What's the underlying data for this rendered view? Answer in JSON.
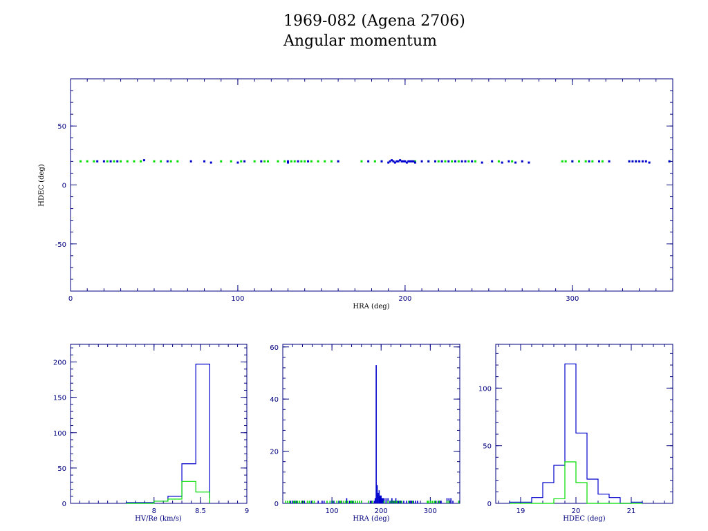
{
  "title": {
    "line1": "1969-082 (Agena 2706)",
    "line2": "Angular momentum"
  },
  "colors": {
    "axis": "#000080",
    "series_blue": "#0000cc",
    "series_green": "#00dd00",
    "text": "#000000"
  },
  "chart_data": [
    {
      "id": "scatter",
      "type": "scatter",
      "xlabel": "HRA (deg)",
      "ylabel": "HDEC (deg)",
      "xlim": [
        0,
        360
      ],
      "ylim": [
        -90,
        90
      ],
      "x_ticks": [
        0,
        100,
        200,
        300
      ],
      "y_ticks": [
        -50,
        0,
        50
      ],
      "series": [
        {
          "color": "blue",
          "x": [
            16,
            20,
            24,
            28,
            44,
            58,
            72,
            80,
            84,
            100,
            104,
            114,
            130,
            130,
            136,
            142,
            160,
            178,
            186,
            190,
            191,
            192,
            193,
            194,
            195,
            196,
            197,
            198,
            199,
            200,
            201,
            202,
            203,
            204,
            205,
            206,
            210,
            214,
            218,
            222,
            226,
            230,
            234,
            236,
            240,
            246,
            252,
            258,
            262,
            266,
            270,
            274,
            300,
            310,
            316,
            322,
            334,
            336,
            338,
            340,
            342,
            344,
            346,
            358
          ],
          "y": [
            20,
            20,
            20,
            20,
            21,
            20,
            20,
            20,
            19,
            19,
            20,
            20,
            20,
            19,
            20,
            20,
            20,
            20,
            20,
            19,
            20,
            21,
            20,
            19,
            20,
            20,
            21,
            20,
            20,
            20,
            19,
            20,
            20,
            20,
            20,
            19,
            20,
            20,
            20,
            20,
            20,
            20,
            20,
            20,
            20,
            19,
            20,
            19,
            20,
            19,
            20,
            19,
            20,
            20,
            20,
            20,
            20,
            20,
            20,
            20,
            20,
            20,
            19,
            20
          ]
        },
        {
          "color": "green",
          "x": [
            6,
            10,
            14,
            22,
            26,
            30,
            34,
            38,
            42,
            50,
            54,
            60,
            64,
            90,
            96,
            102,
            110,
            116,
            118,
            124,
            128,
            132,
            134,
            138,
            140,
            144,
            148,
            152,
            156,
            160,
            174,
            182,
            186,
            206,
            214,
            220,
            224,
            228,
            232,
            238,
            242,
            256,
            264,
            294,
            296,
            300,
            304,
            308,
            312,
            318,
            334,
            338,
            358
          ],
          "y": [
            20,
            20,
            20,
            20,
            20,
            20,
            20,
            20,
            20,
            20,
            20,
            20,
            20,
            20,
            20,
            20,
            20,
            20,
            20,
            20,
            20,
            20,
            20,
            20,
            20,
            20,
            20,
            20,
            20,
            20,
            20,
            20,
            20,
            20,
            20,
            20,
            20,
            20,
            20,
            20,
            20,
            20,
            20,
            20,
            20,
            20,
            20,
            20,
            20,
            20,
            20,
            20,
            20
          ]
        }
      ]
    },
    {
      "id": "hist-hv",
      "type": "bar",
      "xlabel": "HV/Re (km/s)",
      "ylabel": "",
      "xlim": [
        7.1,
        9.0
      ],
      "ylim": [
        0,
        225
      ],
      "x_ticks": [
        8,
        8.5,
        9
      ],
      "y_ticks": [
        0,
        50,
        100,
        150,
        200
      ],
      "bin_edges": [
        7.7,
        7.85,
        8.0,
        8.15,
        8.3,
        8.45,
        8.6
      ],
      "series": [
        {
          "color": "blue",
          "values": [
            1,
            1,
            3,
            10,
            56,
            197,
            8
          ]
        },
        {
          "color": "green",
          "values": [
            0,
            0,
            3,
            6,
            31,
            16,
            0
          ]
        }
      ]
    },
    {
      "id": "hist-hra",
      "type": "bar",
      "xlabel": "HRA (deg)",
      "ylabel": "",
      "xlim": [
        0,
        360
      ],
      "ylim": [
        0,
        61
      ],
      "x_ticks": [
        100,
        200,
        300
      ],
      "y_ticks": [
        0,
        20,
        40,
        60
      ],
      "series": [
        {
          "color": "blue",
          "x": [
            16,
            20,
            24,
            28,
            44,
            58,
            72,
            80,
            84,
            100,
            104,
            114,
            130,
            136,
            142,
            160,
            178,
            186,
            188,
            190,
            192,
            194,
            196,
            198,
            200,
            202,
            204,
            206,
            210,
            214,
            218,
            222,
            226,
            230,
            234,
            236,
            240,
            246,
            252,
            258,
            262,
            266,
            270,
            274,
            300,
            310,
            316,
            322,
            334,
            338,
            342,
            346,
            358
          ],
          "values": [
            1,
            1,
            1,
            1,
            1,
            1,
            1,
            1,
            1,
            1,
            1,
            1,
            2,
            1,
            1,
            1,
            1,
            1,
            2,
            53,
            7,
            4,
            5,
            3,
            3,
            2,
            2,
            2,
            2,
            2,
            1,
            2,
            1,
            2,
            1,
            1,
            1,
            1,
            1,
            1,
            1,
            1,
            1,
            1,
            1,
            1,
            1,
            1,
            2,
            2,
            2,
            1,
            1
          ]
        },
        {
          "color": "green",
          "x": [
            6,
            10,
            14,
            22,
            26,
            30,
            34,
            38,
            42,
            50,
            54,
            60,
            64,
            90,
            96,
            102,
            110,
            116,
            118,
            124,
            128,
            132,
            138,
            140,
            144,
            148,
            152,
            156,
            160,
            174,
            182,
            206,
            214,
            220,
            224,
            228,
            232,
            238,
            242,
            256,
            264,
            294,
            296,
            300,
            304,
            308,
            312,
            318,
            334,
            338,
            358
          ],
          "values": [
            1,
            1,
            1,
            1,
            1,
            1,
            1,
            1,
            1,
            1,
            1,
            1,
            1,
            1,
            1,
            1,
            1,
            1,
            1,
            1,
            1,
            1,
            1,
            1,
            1,
            1,
            1,
            1,
            1,
            1,
            1,
            1,
            1,
            1,
            1,
            1,
            1,
            1,
            1,
            1,
            1,
            1,
            1,
            1,
            1,
            1,
            1,
            1,
            1,
            1,
            1
          ]
        }
      ]
    },
    {
      "id": "hist-hdec",
      "type": "bar",
      "xlabel": "HDEC (deg)",
      "ylabel": "",
      "xlim": [
        18.55,
        21.75
      ],
      "ylim": [
        0,
        138
      ],
      "x_ticks": [
        19,
        20,
        21
      ],
      "y_ticks": [
        0,
        50,
        100
      ],
      "bin_edges": [
        18.8,
        19.0,
        19.2,
        19.4,
        19.6,
        19.8,
        20.0,
        20.2,
        20.4,
        20.6,
        20.8,
        21.0,
        21.2
      ],
      "series": [
        {
          "color": "blue",
          "values": [
            1,
            1,
            5,
            18,
            33,
            121,
            61,
            21,
            8,
            5,
            0,
            1
          ]
        },
        {
          "color": "green",
          "values": [
            0,
            0,
            0,
            0,
            4,
            36,
            18,
            0,
            0,
            0,
            0,
            0
          ]
        }
      ]
    }
  ]
}
